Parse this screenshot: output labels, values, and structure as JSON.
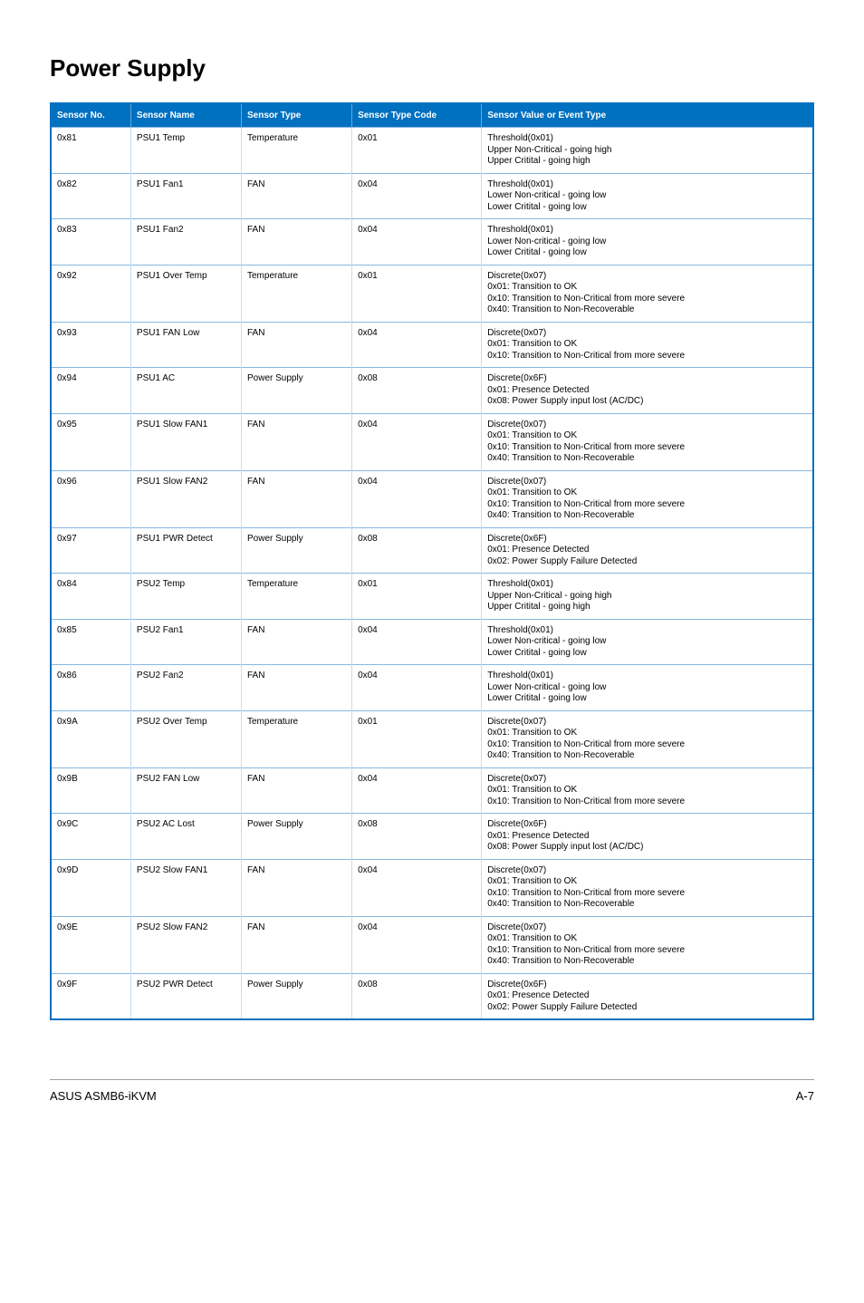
{
  "pageTitle": "Power Supply",
  "footer": {
    "left": "ASUS ASMB6-iKVM",
    "right": "A-7"
  },
  "columns": [
    "Sensor No.",
    "Sensor Name",
    "Sensor Type",
    "Sensor Type Code",
    "Sensor Value or Event Type"
  ],
  "rows": [
    {
      "no": "0x81",
      "name": "PSU1 Temp",
      "type": "Temperature",
      "code": "0x01",
      "value": "Threshold(0x01)\nUpper Non-Critical - going high\nUpper Critital - going high"
    },
    {
      "no": "0x82",
      "name": "PSU1 Fan1",
      "type": "FAN",
      "code": "0x04",
      "value": "Threshold(0x01)\nLower Non-critical - going low\nLower Critital - going low"
    },
    {
      "no": "0x83",
      "name": "PSU1 Fan2",
      "type": "FAN",
      "code": "0x04",
      "value": "Threshold(0x01)\nLower Non-critical - going low\nLower Critital - going low"
    },
    {
      "no": "0x92",
      "name": "PSU1 Over Temp",
      "type": "Temperature",
      "code": "0x01",
      "value": "Discrete(0x07)\n0x01: Transition to OK\n0x10: Transition to Non-Critical from more severe\n0x40: Transition to Non-Recoverable"
    },
    {
      "no": "0x93",
      "name": "PSU1 FAN Low",
      "type": "FAN",
      "code": "0x04",
      "value": "Discrete(0x07)\n0x01: Transition to OK\n0x10: Transition to Non-Critical from more severe"
    },
    {
      "no": "0x94",
      "name": "PSU1 AC",
      "type": "Power Supply",
      "code": "0x08",
      "value": "Discrete(0x6F)\n0x01: Presence Detected\n0x08: Power Supply input lost (AC/DC)"
    },
    {
      "no": "0x95",
      "name": "PSU1 Slow FAN1",
      "type": "FAN",
      "code": "0x04",
      "value": "Discrete(0x07)\n0x01: Transition to OK\n0x10: Transition to Non-Critical from more severe\n0x40: Transition to Non-Recoverable"
    },
    {
      "no": "0x96",
      "name": "PSU1 Slow FAN2",
      "type": "FAN",
      "code": "0x04",
      "value": "Discrete(0x07)\n0x01: Transition to OK\n0x10: Transition to Non-Critical from more severe\n0x40: Transition to Non-Recoverable"
    },
    {
      "no": "0x97",
      "name": "PSU1 PWR Detect",
      "type": "Power Supply",
      "code": "0x08",
      "value": "Discrete(0x6F)\n0x01: Presence Detected\n0x02: Power Supply Failure Detected"
    },
    {
      "no": "0x84",
      "name": "PSU2 Temp",
      "type": "Temperature",
      "code": "0x01",
      "value": "Threshold(0x01)\nUpper Non-Critical - going high\nUpper Critital - going high"
    },
    {
      "no": "0x85",
      "name": "PSU2 Fan1",
      "type": "FAN",
      "code": "0x04",
      "value": "Threshold(0x01)\nLower Non-critical - going low\nLower Critital - going low"
    },
    {
      "no": "0x86",
      "name": "PSU2 Fan2",
      "type": "FAN",
      "code": "0x04",
      "value": "Threshold(0x01)\nLower Non-critical - going low\nLower Critital - going low"
    },
    {
      "no": "0x9A",
      "name": "PSU2 Over Temp",
      "type": "Temperature",
      "code": "0x01",
      "value": "Discrete(0x07)\n0x01: Transition to OK\n0x10: Transition to Non-Critical from more severe\n0x40: Transition to Non-Recoverable"
    },
    {
      "no": "0x9B",
      "name": "PSU2 FAN Low",
      "type": "FAN",
      "code": "0x04",
      "value": "Discrete(0x07)\n0x01: Transition to OK\n0x10: Transition to Non-Critical from more severe"
    },
    {
      "no": "0x9C",
      "name": "PSU2 AC Lost",
      "type": "Power Supply",
      "code": "0x08",
      "value": "Discrete(0x6F)\n0x01: Presence Detected\n0x08: Power Supply input lost (AC/DC)"
    },
    {
      "no": "0x9D",
      "name": "PSU2 Slow FAN1",
      "type": "FAN",
      "code": "0x04",
      "value": "Discrete(0x07)\n0x01: Transition to OK\n0x10: Transition to Non-Critical from more severe\n0x40: Transition to Non-Recoverable"
    },
    {
      "no": "0x9E",
      "name": "PSU2 Slow FAN2",
      "type": "FAN",
      "code": "0x04",
      "value": "Discrete(0x07)\n0x01: Transition to OK\n0x10: Transition to Non-Critical from more severe\n0x40: Transition to Non-Recoverable"
    },
    {
      "no": "0x9F",
      "name": "PSU2 PWR Detect",
      "type": "Power Supply",
      "code": "0x08",
      "value": "Discrete(0x6F)\n0x01: Presence Detected\n0x02: Power Supply Failure Detected"
    }
  ]
}
